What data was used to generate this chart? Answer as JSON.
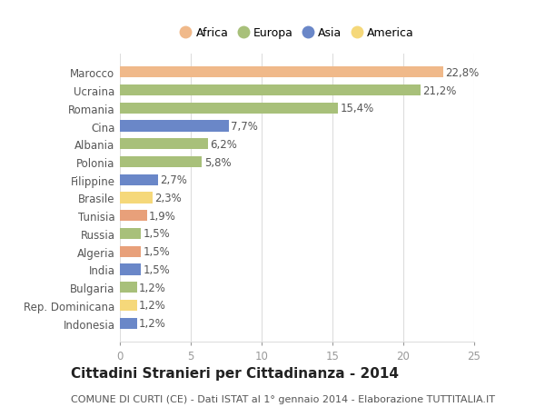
{
  "categories": [
    "Indonesia",
    "Rep. Dominicana",
    "Bulgaria",
    "India",
    "Algeria",
    "Russia",
    "Tunisia",
    "Brasile",
    "Filippine",
    "Polonia",
    "Albania",
    "Cina",
    "Romania",
    "Ucraina",
    "Marocco"
  ],
  "values": [
    1.2,
    1.2,
    1.2,
    1.5,
    1.5,
    1.5,
    1.9,
    2.3,
    2.7,
    5.8,
    6.2,
    7.7,
    15.4,
    21.2,
    22.8
  ],
  "labels": [
    "1,2%",
    "1,2%",
    "1,2%",
    "1,5%",
    "1,5%",
    "1,5%",
    "1,9%",
    "2,3%",
    "2,7%",
    "5,8%",
    "6,2%",
    "7,7%",
    "15,4%",
    "21,2%",
    "22,8%"
  ],
  "colors": [
    "#6a87c8",
    "#f5d87a",
    "#a8c07a",
    "#6a87c8",
    "#e8a07a",
    "#a8c07a",
    "#e8a07a",
    "#f5d87a",
    "#6a87c8",
    "#a8c07a",
    "#a8c07a",
    "#6a87c8",
    "#a8c07a",
    "#a8c07a",
    "#f0b98a"
  ],
  "legend_labels": [
    "Africa",
    "Europa",
    "Asia",
    "America"
  ],
  "legend_colors": [
    "#f0b98a",
    "#a8c07a",
    "#6a87c8",
    "#f5d87a"
  ],
  "title": "Cittadini Stranieri per Cittadinanza - 2014",
  "subtitle": "COMUNE DI CURTI (CE) - Dati ISTAT al 1° gennaio 2014 - Elaborazione TUTTITALIA.IT",
  "xlim": [
    0,
    25
  ],
  "xticks": [
    0,
    5,
    10,
    15,
    20,
    25
  ],
  "bg_color": "#ffffff",
  "grid_color": "#dddddd",
  "bar_height": 0.62,
  "label_fontsize": 8.5,
  "title_fontsize": 11,
  "subtitle_fontsize": 8,
  "tick_fontsize": 8.5
}
